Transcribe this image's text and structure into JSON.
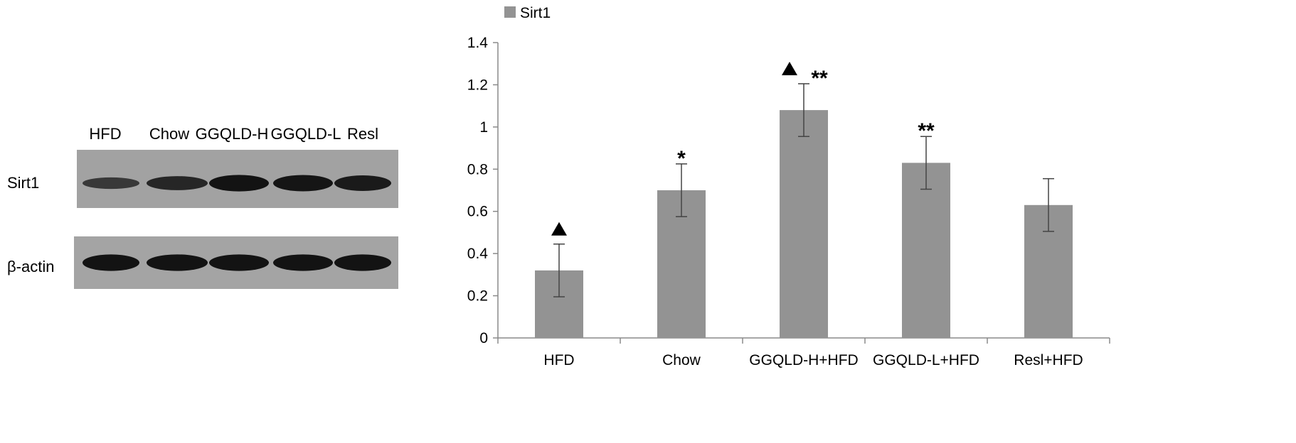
{
  "western_blot": {
    "lanes": [
      "HFD",
      "Chow",
      "GGQLD-H",
      "GGQLD-L",
      "Resl"
    ],
    "rows": [
      {
        "label": "Sirt1",
        "band_intensity": [
          0.45,
          0.7,
          0.95,
          0.92,
          0.85
        ]
      },
      {
        "label": "β-actin",
        "band_intensity": [
          0.95,
          0.95,
          0.95,
          0.95,
          0.95
        ]
      }
    ]
  },
  "chart_data": {
    "type": "bar",
    "categories": [
      "HFD",
      "Chow",
      "GGQLD-H+HFD",
      "GGQLD-L+HFD",
      "Resl+HFD"
    ],
    "series": [
      {
        "name": "Sirt1",
        "values": [
          0.32,
          0.7,
          1.08,
          0.83,
          0.63
        ],
        "errors": [
          0.125,
          0.125,
          0.125,
          0.125,
          0.125
        ],
        "color": "#939393"
      }
    ],
    "annotations": [
      {
        "category": "HFD",
        "symbols": [
          "▲"
        ]
      },
      {
        "category": "Chow",
        "symbols": [
          "*"
        ]
      },
      {
        "category": "GGQLD-H+HFD",
        "symbols": [
          "▲",
          "**"
        ]
      },
      {
        "category": "GGQLD-L+HFD",
        "symbols": [
          "**"
        ]
      },
      {
        "category": "Resl+HFD",
        "symbols": []
      }
    ],
    "ylim": [
      0,
      1.4
    ],
    "yticks": [
      "0",
      "0.2",
      "0.4",
      "0.6",
      "0.8",
      "1",
      "1.2",
      "1.4"
    ],
    "legend_position": "top-left",
    "grid": false
  }
}
